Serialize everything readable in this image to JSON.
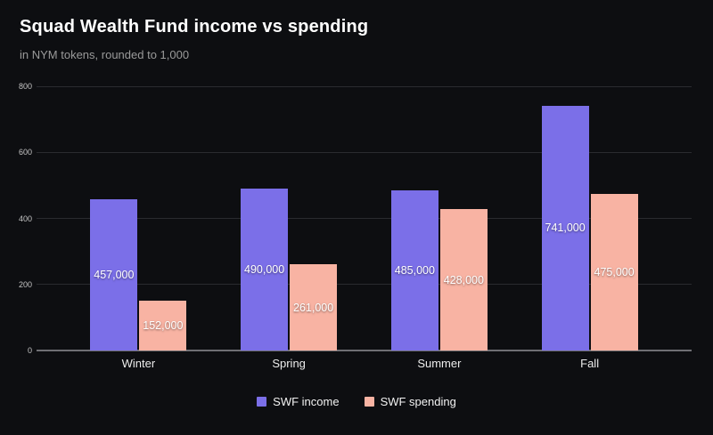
{
  "header": {
    "title": "Squad Wealth Fund income vs spending",
    "subtitle": "in NYM tokens, rounded to 1,000"
  },
  "colors": {
    "background": "#0d0e11",
    "income_bar": "#7b6fe8",
    "spending_bar": "#f8b3a3",
    "gridline": "#2a2b2f",
    "zero_axis_line": "#6f6f74",
    "title_text": "#ffffff",
    "subtitle_text": "#9a9a9a",
    "tick_label_text": "#c4c4c4",
    "category_label_text": "#ececec",
    "value_label_text": "#ffffff"
  },
  "chart_data": {
    "type": "bar",
    "title": "Squad Wealth Fund income vs spending",
    "subtitle": "in NYM tokens, rounded to 1,000",
    "categories": [
      "Winter",
      "Spring",
      "Summer",
      "Fall"
    ],
    "series": [
      {
        "name": "SWF income",
        "color": "#7b6fe8",
        "values": [
          457000,
          490000,
          485000,
          741000
        ],
        "labels": [
          "457,000",
          "490,000",
          "485,000",
          "741,000"
        ]
      },
      {
        "name": "SWF spending",
        "color": "#f8b3a3",
        "values": [
          152000,
          261000,
          428000,
          475000
        ],
        "labels": [
          "152,000",
          "261,000",
          "428,000",
          "475,000"
        ]
      }
    ],
    "y_axis": {
      "ticks": [
        0,
        200,
        400,
        600,
        800
      ],
      "tick_unit": "thousands",
      "max": 800000
    },
    "grid": true,
    "legend_position": "bottom"
  },
  "legend": {
    "items": [
      {
        "label": "SWF income",
        "color": "#7b6fe8"
      },
      {
        "label": "SWF spending",
        "color": "#f8b3a3"
      }
    ]
  }
}
